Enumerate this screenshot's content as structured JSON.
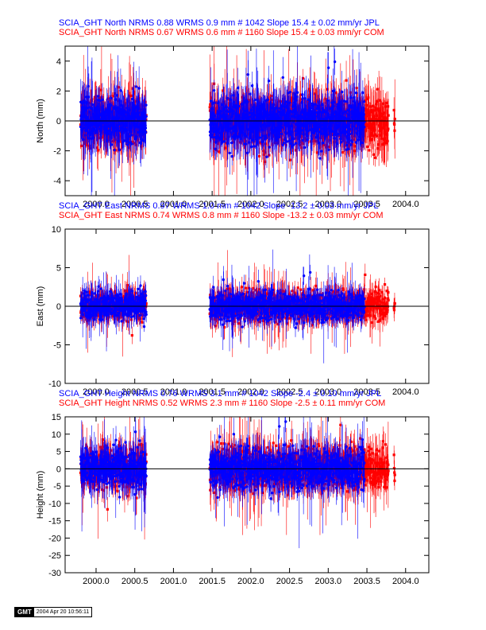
{
  "chart_data": [
    {
      "type": "scatter",
      "ylabel": "North (mm)",
      "x_domain": [
        1999.6,
        2004.3
      ],
      "ylim": [
        -5,
        5
      ],
      "yticks": [
        -4,
        -2,
        0,
        2,
        4
      ],
      "xticks": [
        2000.0,
        2000.5,
        2001.0,
        2001.5,
        2002.0,
        2002.5,
        2003.0,
        2003.5,
        2004.0
      ],
      "xtick_labels": [
        "2000.0",
        "2000.5",
        "2001.0",
        "2001.5",
        "2002.0",
        "2002.5",
        "2003.0",
        "2003.5",
        "2004.0"
      ],
      "legend": [
        {
          "text": "SCIA_GHT North NRMS 0.88 WRMS  0.9 mm # 1042 Slope   15.4 ±  0.02 mm/yr JPL",
          "color": "#0000ff"
        },
        {
          "text": "SCIA_GHT North NRMS 0.67 WRMS  0.6 mm # 1160 Slope   15.4 ±  0.03 mm/yr COM",
          "color": "#ff0000"
        }
      ],
      "noise": 0.9,
      "series": [
        {
          "name": "JPL",
          "color": "#0000ff"
        },
        {
          "name": "COM",
          "color": "#ff0000"
        }
      ]
    },
    {
      "type": "scatter",
      "ylabel": "East (mm)",
      "x_domain": [
        1999.6,
        2004.3
      ],
      "ylim": [
        -10,
        10
      ],
      "yticks": [
        -10,
        -5,
        0,
        5,
        10
      ],
      "xticks": [
        2000.0,
        2000.5,
        2001.0,
        2001.5,
        2002.0,
        2002.5,
        2003.0,
        2003.5,
        2004.0
      ],
      "xtick_labels": [
        "2000.0",
        "2000.5",
        "2001.0",
        "2001.5",
        "2002.0",
        "2002.5",
        "2003.0",
        "2003.5",
        "2004.0"
      ],
      "legend": [
        {
          "text": "SCIA_GHT East NRMS 0.97 WRMS  1.0 mm # 1042 Slope  -13.2 ±  0.03 mm/yr JPL",
          "color": "#0000ff"
        },
        {
          "text": "SCIA_GHT East NRMS 0.74 WRMS  0.8 mm # 1160 Slope  -13.2 ±  0.03 mm/yr COM",
          "color": "#ff0000"
        }
      ],
      "noise": 1.0,
      "series": [
        {
          "name": "JPL",
          "color": "#0000ff"
        },
        {
          "name": "COM",
          "color": "#ff0000"
        }
      ]
    },
    {
      "type": "scatter",
      "ylabel": "Height (mm)",
      "x_domain": [
        1999.6,
        2004.3
      ],
      "ylim": [
        -30,
        15
      ],
      "yticks": [
        -30,
        -25,
        -20,
        -15,
        -10,
        -5,
        0,
        5,
        10,
        15
      ],
      "xticks": [
        2000.0,
        2000.5,
        2001.0,
        2001.5,
        2002.0,
        2002.5,
        2003.0,
        2003.5,
        2004.0
      ],
      "xtick_labels": [
        "2000.0",
        "2000.5",
        "2001.0",
        "2001.5",
        "2002.0",
        "2002.5",
        "2003.0",
        "2003.5",
        "2004.0"
      ],
      "legend": [
        {
          "text": "SCIA_GHT Height NRMS 0.76 WRMS  3.1 mm # 1042 Slope   -2.4 ±  0.10 mm/yr JPL",
          "color": "#0000ff"
        },
        {
          "text": "SCIA_GHT Height NRMS 0.52 WRMS  2.3 mm # 1160 Slope   -2.5 ±  0.11 mm/yr COM",
          "color": "#ff0000"
        }
      ],
      "noise": 3.1,
      "series": [
        {
          "name": "JPL",
          "color": "#0000ff"
        },
        {
          "name": "COM",
          "color": "#ff0000"
        }
      ]
    }
  ],
  "data_segments": [
    [
      1999.8,
      2000.65
    ],
    [
      2001.47,
      2003.78
    ],
    [
      2003.85,
      2004.1
    ]
  ],
  "footer": {
    "logo": "GMT",
    "timestamp": "2004 Apr 20 10:56:11"
  }
}
